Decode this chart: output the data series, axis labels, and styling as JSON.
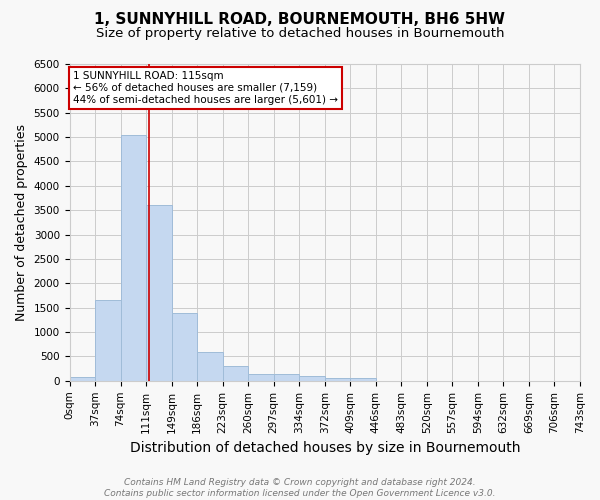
{
  "title": "1, SUNNYHILL ROAD, BOURNEMOUTH, BH6 5HW",
  "subtitle": "Size of property relative to detached houses in Bournemouth",
  "xlabel": "Distribution of detached houses by size in Bournemouth",
  "ylabel": "Number of detached properties",
  "bin_edges": [
    0,
    37,
    74,
    111,
    148,
    185,
    222,
    259,
    296,
    333,
    370,
    407,
    444,
    481,
    518,
    555,
    592,
    629,
    666,
    703,
    740
  ],
  "bin_labels": [
    "0sqm",
    "37sqm",
    "74sqm",
    "111sqm",
    "149sqm",
    "186sqm",
    "223sqm",
    "260sqm",
    "297sqm",
    "334sqm",
    "372sqm",
    "409sqm",
    "446sqm",
    "483sqm",
    "520sqm",
    "557sqm",
    "594sqm",
    "632sqm",
    "669sqm",
    "706sqm",
    "743sqm"
  ],
  "counts": [
    75,
    1650,
    5050,
    3600,
    1400,
    600,
    300,
    150,
    130,
    90,
    50,
    50,
    0,
    0,
    0,
    0,
    0,
    0,
    0,
    0
  ],
  "bar_color": "#c5d8f0",
  "bar_edgecolor": "#a0bcd8",
  "property_line_x": 115,
  "property_line_color": "#cc0000",
  "annotation_text": "1 SUNNYHILL ROAD: 115sqm\n← 56% of detached houses are smaller (7,159)\n44% of semi-detached houses are larger (5,601) →",
  "annotation_box_color": "#ffffff",
  "annotation_box_edgecolor": "#cc0000",
  "ylim": [
    0,
    6500
  ],
  "yticks": [
    0,
    500,
    1000,
    1500,
    2000,
    2500,
    3000,
    3500,
    4000,
    4500,
    5000,
    5500,
    6000,
    6500
  ],
  "title_fontsize": 11,
  "subtitle_fontsize": 9.5,
  "xlabel_fontsize": 10,
  "ylabel_fontsize": 9,
  "tick_fontsize": 7.5,
  "annotation_fontsize": 7.5,
  "footer_line1": "Contains HM Land Registry data © Crown copyright and database right 2024.",
  "footer_line2": "Contains public sector information licensed under the Open Government Licence v3.0.",
  "footer_fontsize": 6.5,
  "background_color": "#f8f8f8",
  "grid_color": "#cccccc",
  "spine_color": "#cccccc"
}
